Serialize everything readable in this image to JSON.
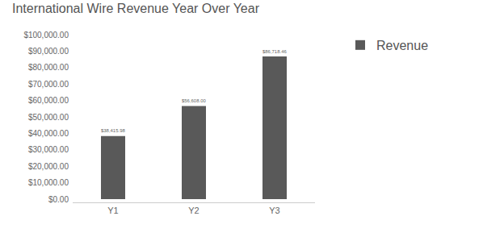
{
  "chart_data": {
    "type": "bar",
    "title": "International Wire Revenue Year Over Year",
    "categories": [
      "Y1",
      "Y2",
      "Y3"
    ],
    "series": [
      {
        "name": "Revenue",
        "color": "#595959",
        "values": [
          38415.98,
          56608.0,
          86718.46
        ],
        "value_labels": [
          "$38,415.98",
          "$56,608.00",
          "$86,718.46"
        ]
      }
    ],
    "ylim": [
      0,
      100000
    ],
    "yticks": [
      {
        "value": 0,
        "label": "$0.00"
      },
      {
        "value": 10000,
        "label": "$10,000.00"
      },
      {
        "value": 20000,
        "label": "$20,000.00"
      },
      {
        "value": 30000,
        "label": "$30,000.00"
      },
      {
        "value": 40000,
        "label": "$40,000.00"
      },
      {
        "value": 50000,
        "label": "$50,000.00"
      },
      {
        "value": 60000,
        "label": "$60,000.00"
      },
      {
        "value": 70000,
        "label": "$70,000.00"
      },
      {
        "value": 80000,
        "label": "$80,000.00"
      },
      {
        "value": 90000,
        "label": "$90,000.00"
      },
      {
        "value": 100000,
        "label": "$100,000.00"
      }
    ],
    "grid": false,
    "legend": "upper right",
    "data_labels": true
  }
}
